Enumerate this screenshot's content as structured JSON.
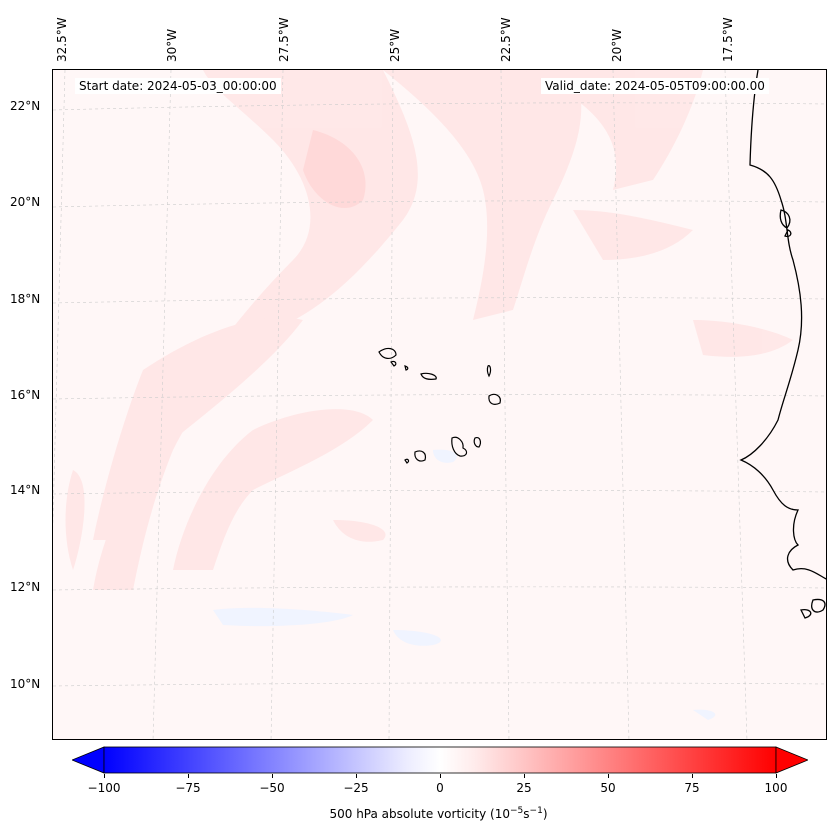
{
  "map": {
    "start_date": "Start date: 2024-05-03_00:00:00",
    "valid_date": "Valid_date: 2024-05-05T09:00:00.00",
    "lon_labels": [
      "32.5°W",
      "30°W",
      "27.5°W",
      "25°W",
      "22.5°W",
      "20°W",
      "17.5°W"
    ],
    "lat_labels": [
      "22°N",
      "20°N",
      "18°N",
      "16°N",
      "14°N",
      "12°N",
      "10°N"
    ],
    "field_color_pos": "#ffe6e6",
    "field_color_neg": "#eef3ff",
    "coast_color": "#000000"
  },
  "colorbar": {
    "ticks": [
      "−100",
      "−75",
      "−50",
      "−25",
      "0",
      "25",
      "50",
      "75",
      "100"
    ],
    "label_prefix": "500 hPa absolute vorticity (10",
    "label_exp1": "−5",
    "label_mid": "s",
    "label_exp2": "−1",
    "label_suffix": ")",
    "min_color": "#0000ff",
    "mid_color": "#ffffff",
    "max_color": "#ff0000"
  }
}
